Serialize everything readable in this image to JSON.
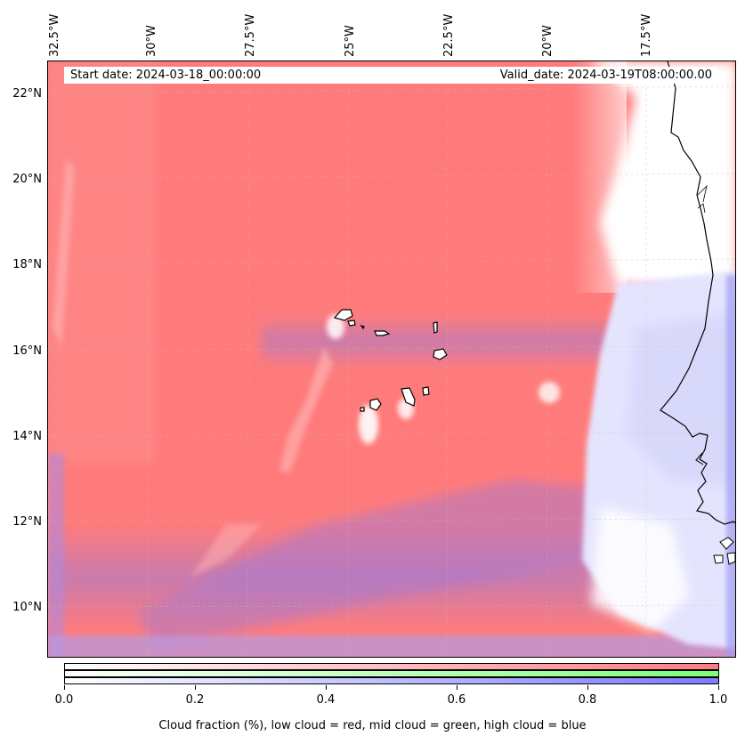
{
  "map": {
    "start_date": "Start date: 2024-03-18_00:00:00",
    "valid_date": "Valid_date: 2024-03-19T08:00:00.00",
    "lon_labels": [
      "32.5°W",
      "30°W",
      "27.5°W",
      "25°W",
      "22.5°W",
      "20°W",
      "17.5°W"
    ],
    "lat_labels": [
      "22°N",
      "20°N",
      "18°N",
      "16°N",
      "14°N",
      "12°N",
      "10°N"
    ],
    "layers": {
      "low_cloud_color": "#ff7b7b",
      "mid_cloud_color": "#7bff7b",
      "high_cloud_color": "#7b7bff",
      "clear_color": "#ffffff"
    }
  },
  "colorbar": {
    "tick_labels": [
      "0.0",
      "0.2",
      "0.4",
      "0.6",
      "0.8",
      "1.0"
    ],
    "caption": "Cloud fraction (%), low cloud = red, mid cloud = green, high cloud = blue"
  }
}
